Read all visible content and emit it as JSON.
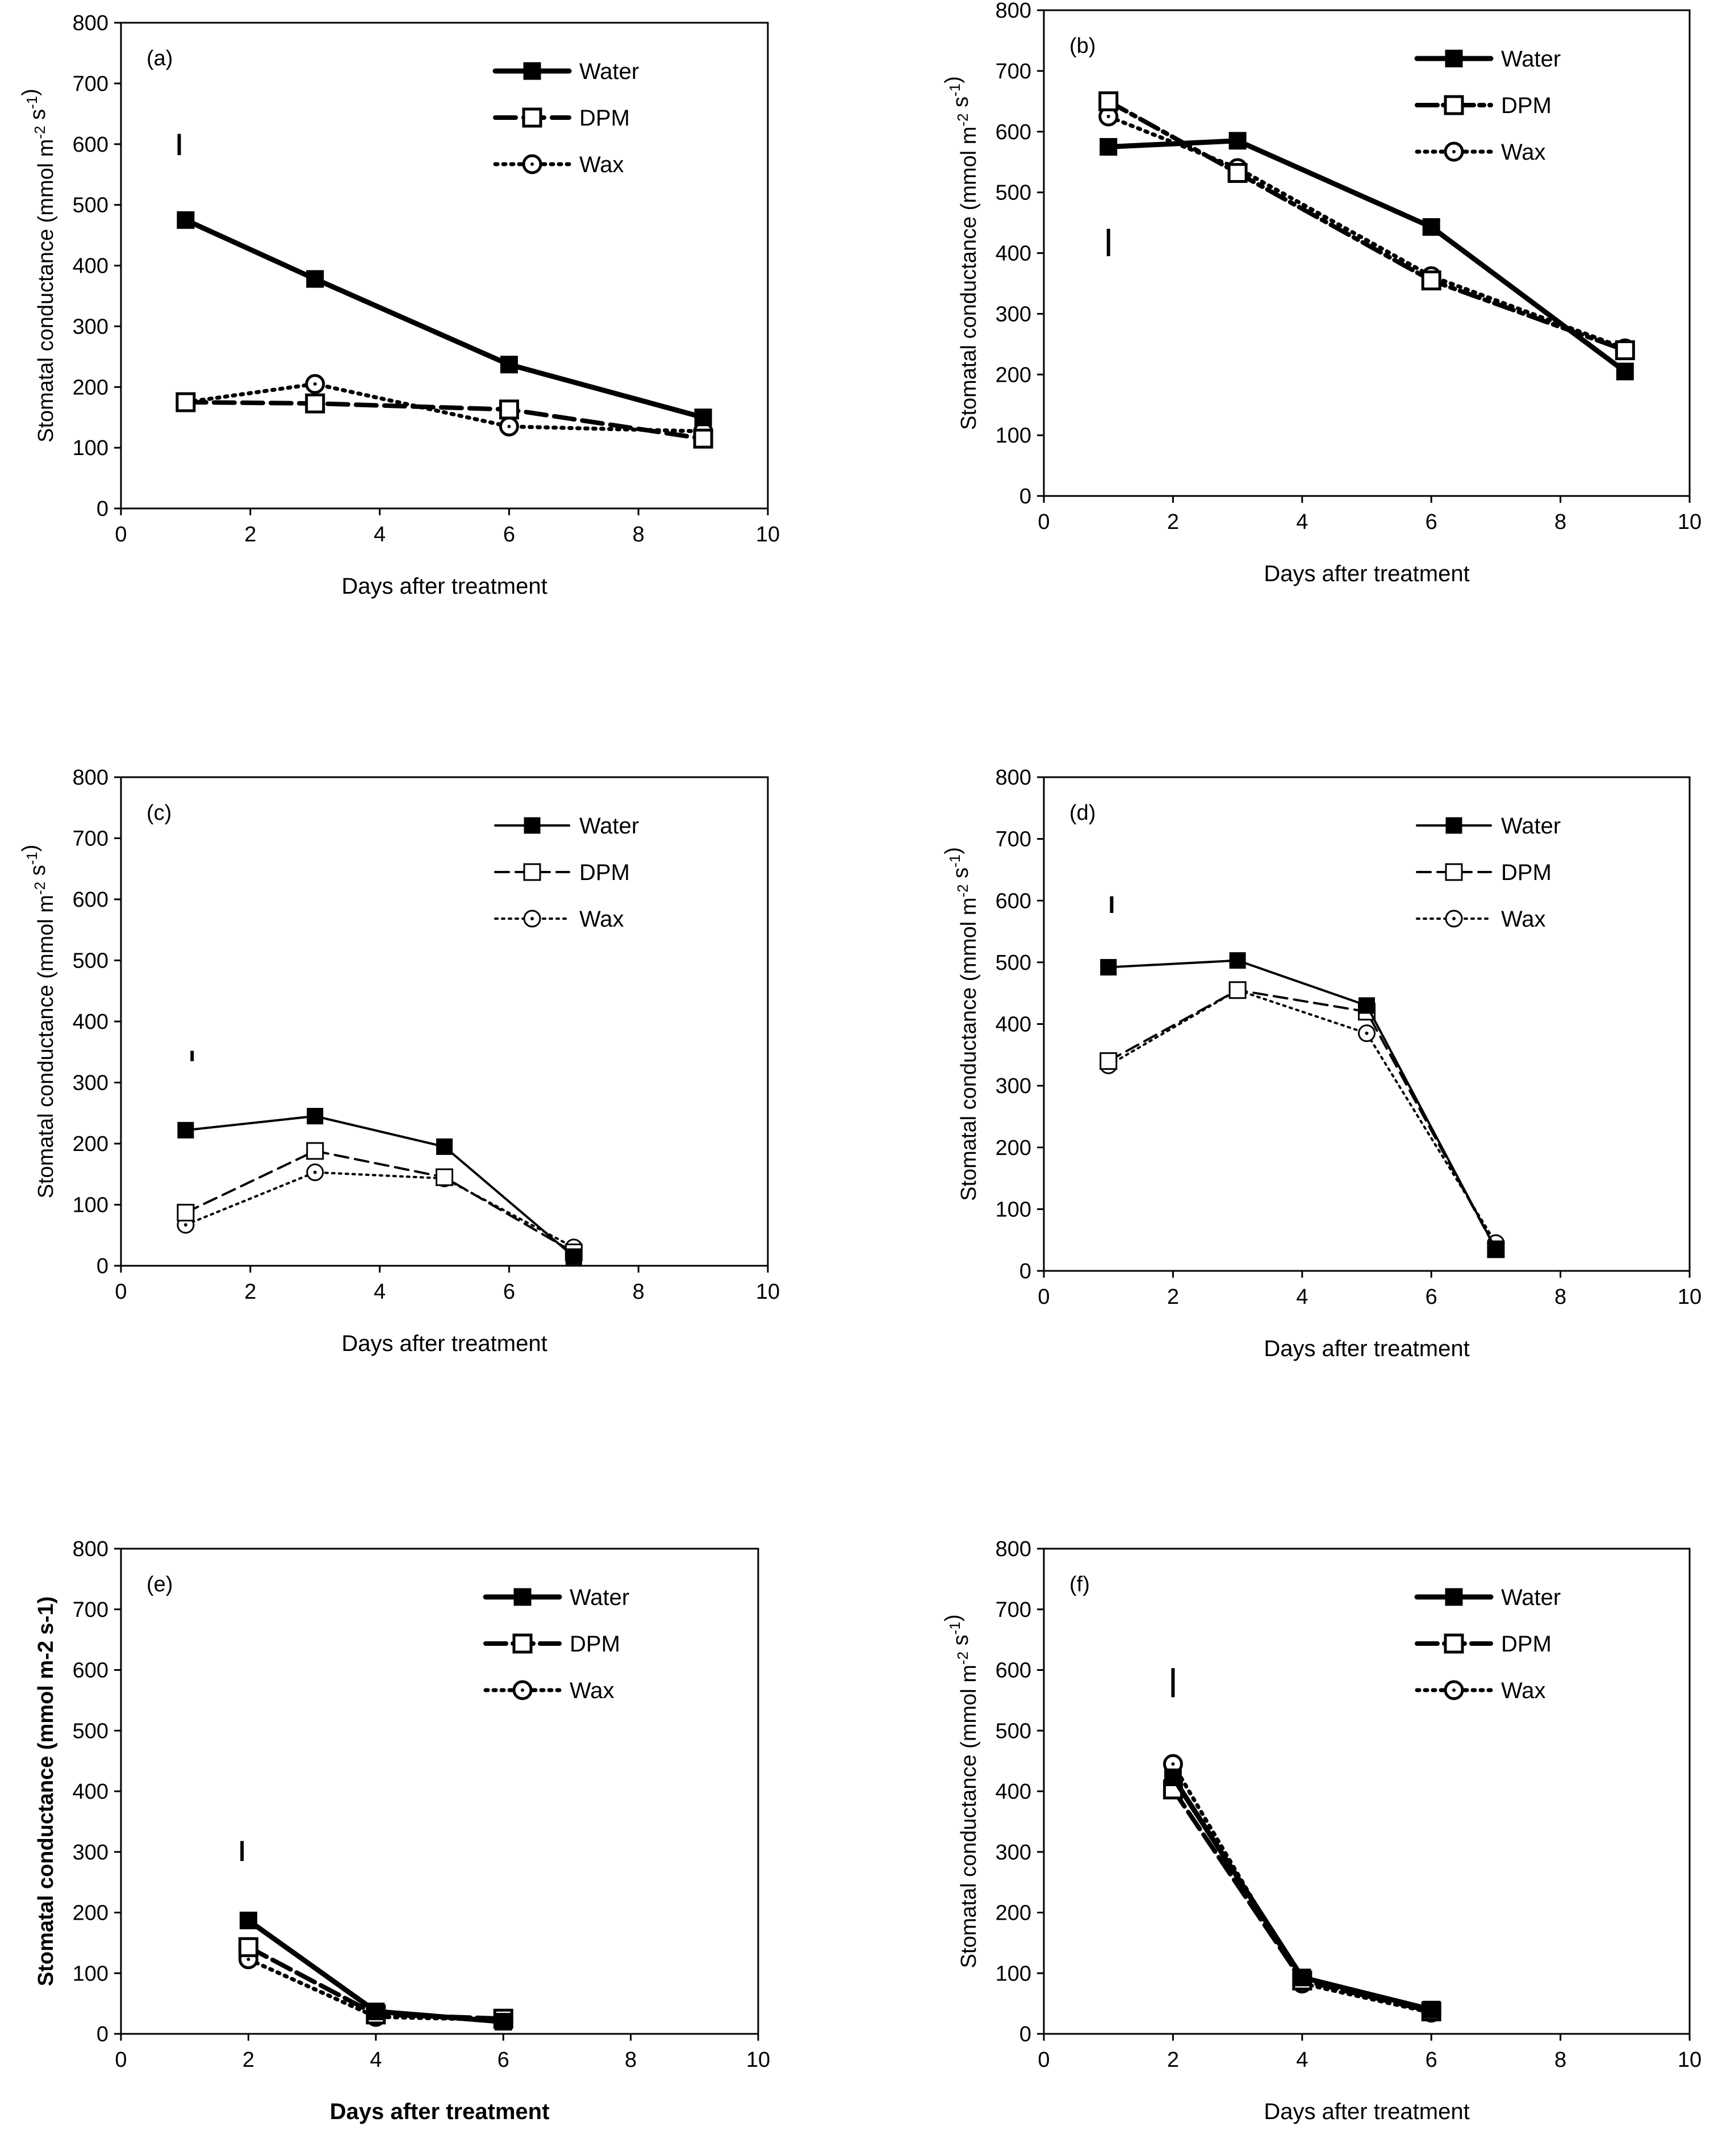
{
  "chart_data": [
    {
      "type": "line",
      "panel": "(a)",
      "xlabel": "Days after treatment",
      "ylabel": "Stomatal conductance (mmol m^-2 s^-1)",
      "xlim": [
        0,
        10
      ],
      "ylim": [
        0,
        800
      ],
      "xticks": [
        "0",
        "2",
        "4",
        "6",
        "8",
        "10"
      ],
      "yticks": [
        "0",
        "100",
        "200",
        "300",
        "400",
        "500",
        "600",
        "700",
        "800"
      ],
      "legend_position": "top-right",
      "error_bar": {
        "x": 0.9,
        "y_low": 582,
        "y_high": 617
      },
      "series": [
        {
          "name": "Water",
          "x": [
            1,
            3,
            6,
            9
          ],
          "values": [
            475,
            378,
            237,
            150
          ]
        },
        {
          "name": "DPM",
          "x": [
            1,
            3,
            6,
            9
          ],
          "values": [
            175,
            173,
            163,
            115
          ]
        },
        {
          "name": "Wax",
          "x": [
            1,
            3,
            6,
            9
          ],
          "values": [
            175,
            205,
            135,
            127
          ]
        }
      ]
    },
    {
      "type": "line",
      "panel": "(b)",
      "xlabel": "Days after treatment",
      "ylabel": "Stomatal conductance (mmol m^-2 s^-1)",
      "xlim": [
        0,
        10
      ],
      "ylim": [
        0,
        800
      ],
      "xticks": [
        "0",
        "2",
        "4",
        "6",
        "8",
        "10"
      ],
      "yticks": [
        "0",
        "100",
        "200",
        "300",
        "400",
        "500",
        "600",
        "700",
        "800"
      ],
      "legend_position": "top-right",
      "error_bar": {
        "x": 1.0,
        "y_low": 395,
        "y_high": 440
      },
      "series": [
        {
          "name": "Water",
          "x": [
            1,
            3,
            6,
            9
          ],
          "values": [
            575,
            585,
            443,
            205
          ]
        },
        {
          "name": "DPM",
          "x": [
            1,
            3,
            6,
            9
          ],
          "values": [
            650,
            532,
            355,
            240
          ]
        },
        {
          "name": "Wax",
          "x": [
            1,
            3,
            6,
            9
          ],
          "values": [
            625,
            540,
            362,
            243
          ]
        }
      ]
    },
    {
      "type": "line",
      "panel": "(c)",
      "xlabel": "Days after treatment",
      "ylabel": "Stomatal conductance (mmol m^-2 s^-1)",
      "xlim": [
        0,
        10
      ],
      "ylim": [
        0,
        800
      ],
      "xticks": [
        "0",
        "2",
        "4",
        "6",
        "8",
        "10"
      ],
      "yticks": [
        "0",
        "100",
        "200",
        "300",
        "400",
        "500",
        "600",
        "700",
        "800"
      ],
      "legend_position": "top-right",
      "error_bar": {
        "x": 1.1,
        "y_low": 335,
        "y_high": 352
      },
      "series": [
        {
          "name": "Water",
          "x": [
            1,
            3,
            5,
            7
          ],
          "values": [
            222,
            245,
            195,
            15
          ]
        },
        {
          "name": "DPM",
          "x": [
            1,
            3,
            5,
            7
          ],
          "values": [
            87,
            188,
            145,
            22
          ]
        },
        {
          "name": "Wax",
          "x": [
            1,
            3,
            5,
            7
          ],
          "values": [
            67,
            153,
            143,
            30
          ]
        }
      ]
    },
    {
      "type": "line",
      "panel": "(d)",
      "xlabel": "Days after treatment",
      "ylabel": "Stomatal conductance (mmol m^-2 s^-1)",
      "xlim": [
        0,
        10
      ],
      "ylim": [
        0,
        800
      ],
      "xticks": [
        "0",
        "2",
        "4",
        "6",
        "8",
        "10"
      ],
      "yticks": [
        "0",
        "100",
        "200",
        "300",
        "400",
        "500",
        "600",
        "700",
        "800"
      ],
      "legend_position": "top-right",
      "error_bar": {
        "x": 1.05,
        "y_low": 580,
        "y_high": 607
      },
      "series": [
        {
          "name": "Water",
          "x": [
            1,
            3,
            5,
            7
          ],
          "values": [
            492,
            503,
            430,
            35
          ]
        },
        {
          "name": "DPM",
          "x": [
            1,
            3,
            5,
            7
          ],
          "values": [
            340,
            455,
            420,
            35
          ]
        },
        {
          "name": "Wax",
          "x": [
            1,
            3,
            5,
            7
          ],
          "values": [
            333,
            455,
            385,
            45
          ]
        }
      ]
    },
    {
      "type": "line",
      "panel": "(e)",
      "xlabel": "Days after treatment",
      "ylabel": "Stomatal conductance (mmol m-2 s-1)",
      "xlim": [
        0,
        10
      ],
      "ylim": [
        0,
        800
      ],
      "xticks": [
        "0",
        "2",
        "4",
        "6",
        "8",
        "10"
      ],
      "yticks": [
        "0",
        "100",
        "200",
        "300",
        "400",
        "500",
        "600",
        "700",
        "800"
      ],
      "legend_position": "top-right",
      "error_bar": {
        "x": 1.9,
        "y_low": 285,
        "y_high": 318
      },
      "series": [
        {
          "name": "Water",
          "x": [
            2,
            4,
            6
          ],
          "values": [
            187,
            37,
            20
          ]
        },
        {
          "name": "DPM",
          "x": [
            2,
            4,
            6
          ],
          "values": [
            143,
            32,
            25
          ]
        },
        {
          "name": "Wax",
          "x": [
            2,
            4,
            6
          ],
          "values": [
            123,
            28,
            23
          ]
        }
      ]
    },
    {
      "type": "line",
      "panel": "(f)",
      "xlabel": "Days after treatment",
      "ylabel": "Stomatal conductance (mmol m^-2 s^-1)",
      "xlim": [
        0,
        10
      ],
      "ylim": [
        0,
        800
      ],
      "xticks": [
        "0",
        "2",
        "4",
        "6",
        "8",
        "10"
      ],
      "yticks": [
        "0",
        "100",
        "200",
        "300",
        "400",
        "500",
        "600",
        "700",
        "800"
      ],
      "legend_position": "top-right",
      "error_bar": {
        "x": 2.0,
        "y_low": 555,
        "y_high": 603
      },
      "series": [
        {
          "name": "Water",
          "x": [
            2,
            4,
            6
          ],
          "values": [
            423,
            93,
            40
          ]
        },
        {
          "name": "DPM",
          "x": [
            2,
            4,
            6
          ],
          "values": [
            403,
            88,
            37
          ]
        },
        {
          "name": "Wax",
          "x": [
            2,
            4,
            6
          ],
          "values": [
            445,
            83,
            35
          ]
        }
      ]
    }
  ]
}
